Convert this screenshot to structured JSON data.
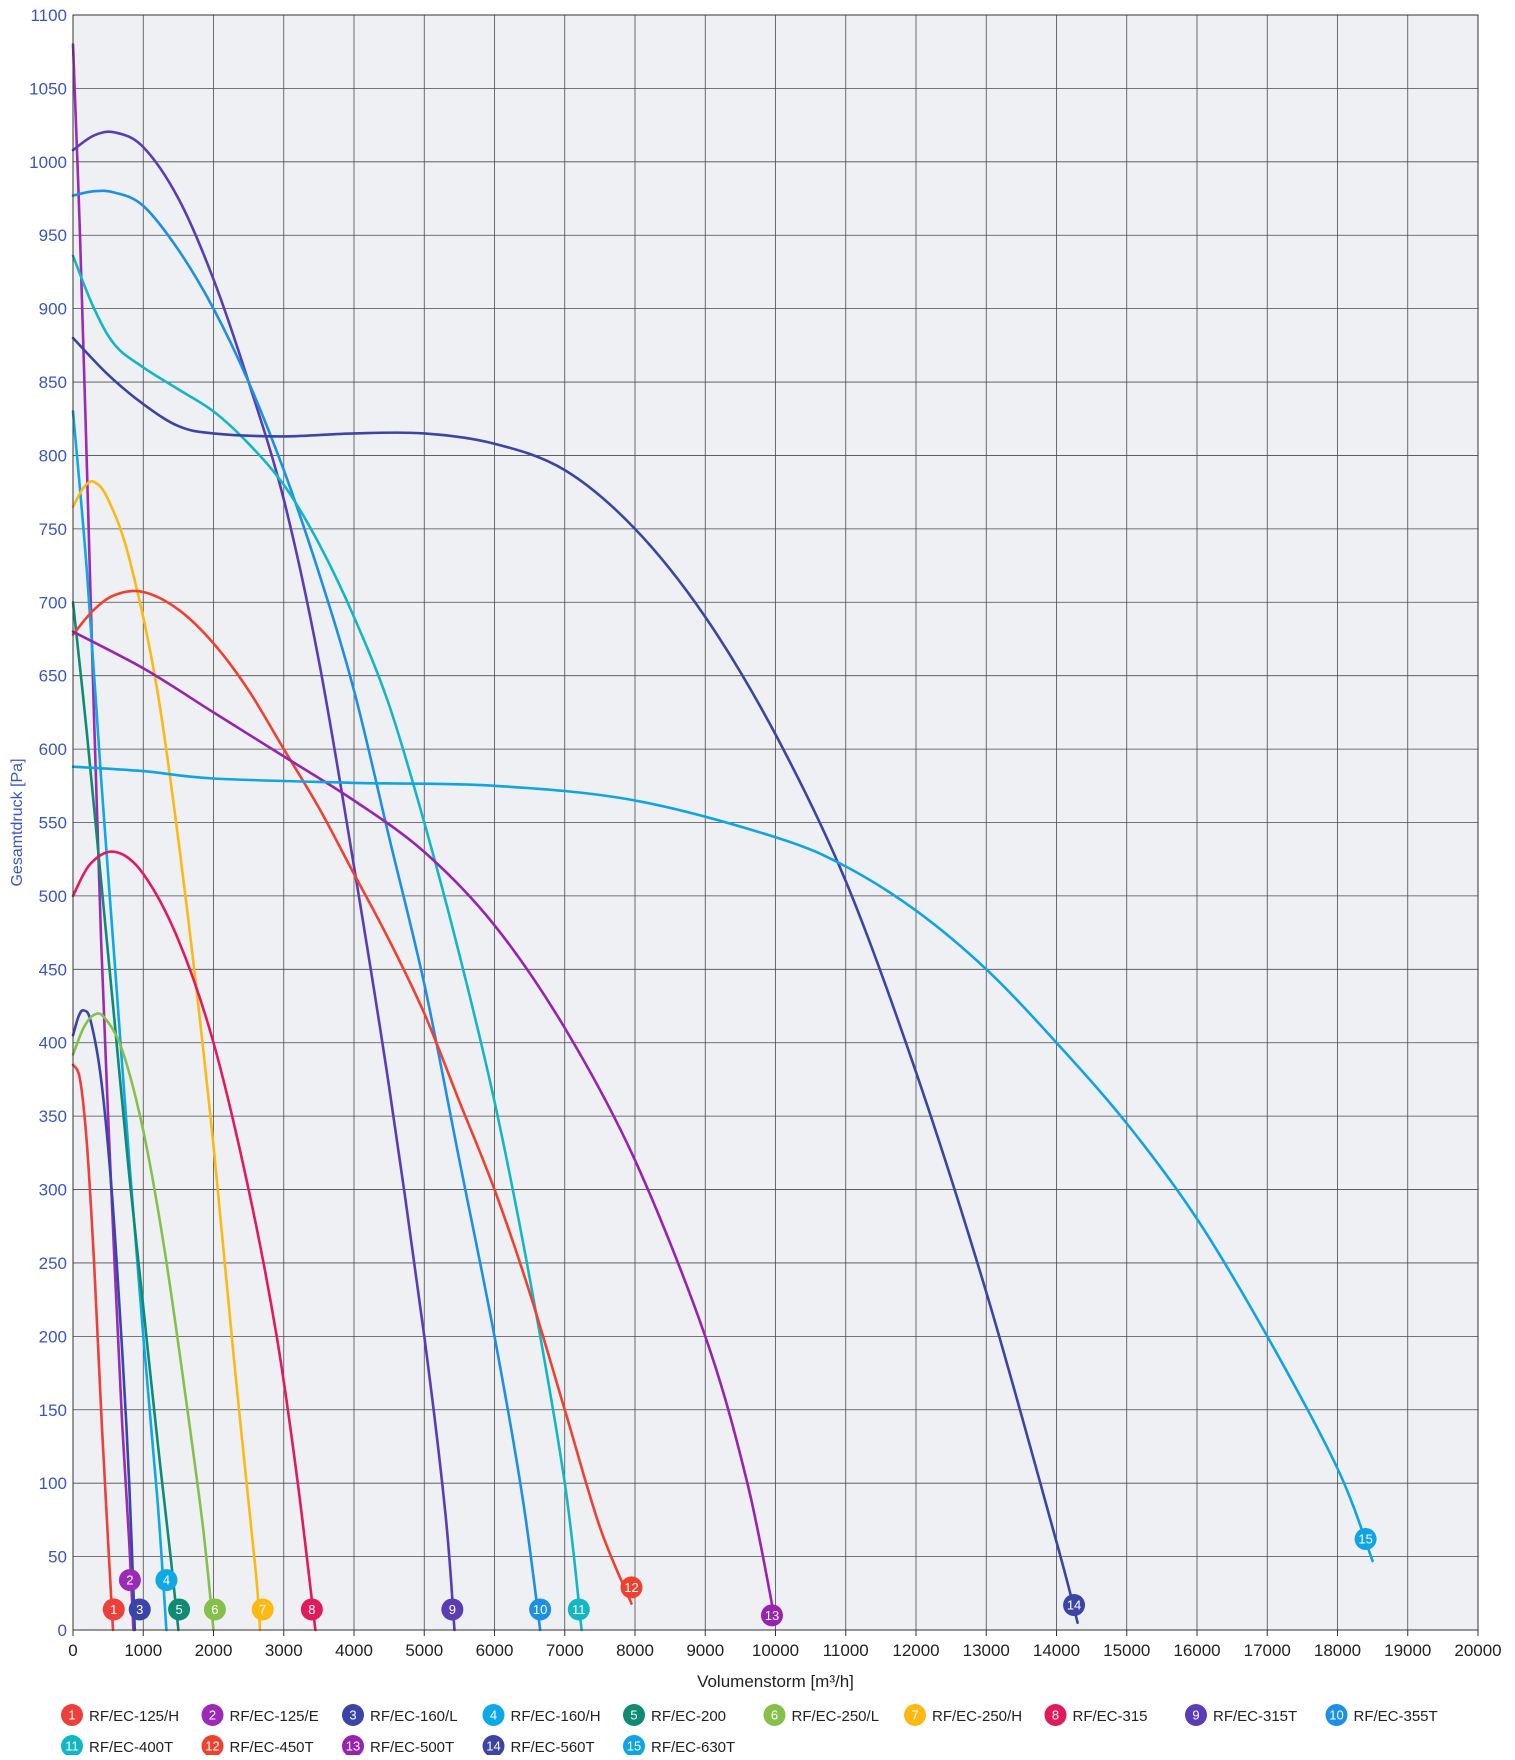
{
  "chart_data": {
    "type": "line",
    "xlabel": "Volumenstorm [m³/h]",
    "ylabel": "Gesamtdruck [Pa]",
    "xlim": [
      0,
      20000
    ],
    "ylim": [
      0,
      1100
    ],
    "grid": true,
    "legend_position": "bottom",
    "plot_background": "#eef0f3",
    "x_ticks": [
      0,
      1000,
      2000,
      3000,
      4000,
      5000,
      6000,
      7000,
      8000,
      9000,
      10000,
      11000,
      12000,
      13000,
      14000,
      15000,
      16000,
      17000,
      18000,
      19000,
      20000
    ],
    "y_ticks": [
      0,
      50,
      100,
      150,
      200,
      250,
      300,
      350,
      400,
      450,
      500,
      550,
      600,
      650,
      700,
      750,
      800,
      850,
      900,
      950,
      1000,
      1050,
      1100
    ],
    "series": [
      {
        "id": "1",
        "name": "RF/EC-125/H",
        "color": "#ef3f3a",
        "points": [
          [
            0,
            385
          ],
          [
            100,
            375
          ],
          [
            200,
            330
          ],
          [
            300,
            250
          ],
          [
            400,
            150
          ],
          [
            500,
            60
          ],
          [
            570,
            0
          ]
        ],
        "marker": [
          580,
          14
        ]
      },
      {
        "id": "2",
        "name": "RF/EC-125/E",
        "color": "#9b2bb6",
        "points": [
          [
            0,
            1080
          ],
          [
            100,
            950
          ],
          [
            200,
            790
          ],
          [
            300,
            620
          ],
          [
            400,
            470
          ],
          [
            500,
            350
          ],
          [
            600,
            240
          ],
          [
            700,
            140
          ],
          [
            800,
            60
          ],
          [
            860,
            0
          ]
        ],
        "marker": [
          810,
          34
        ]
      },
      {
        "id": "3",
        "name": "RF/EC-160/L",
        "color": "#3b44a9",
        "points": [
          [
            0,
            405
          ],
          [
            80,
            418
          ],
          [
            150,
            422
          ],
          [
            250,
            415
          ],
          [
            400,
            375
          ],
          [
            550,
            300
          ],
          [
            700,
            190
          ],
          [
            800,
            100
          ],
          [
            880,
            0
          ]
        ],
        "marker": [
          950,
          14
        ]
      },
      {
        "id": "4",
        "name": "RF/EC-160/H",
        "color": "#0fa8e6",
        "points": [
          [
            0,
            830
          ],
          [
            200,
            720
          ],
          [
            400,
            580
          ],
          [
            600,
            450
          ],
          [
            800,
            320
          ],
          [
            1000,
            200
          ],
          [
            1200,
            90
          ],
          [
            1330,
            0
          ]
        ],
        "marker": [
          1330,
          34
        ]
      },
      {
        "id": "5",
        "name": "RF/EC-200",
        "color": "#0e8b72",
        "points": [
          [
            0,
            700
          ],
          [
            200,
            610
          ],
          [
            400,
            510
          ],
          [
            600,
            410
          ],
          [
            800,
            310
          ],
          [
            1000,
            220
          ],
          [
            1200,
            130
          ],
          [
            1400,
            45
          ],
          [
            1500,
            0
          ]
        ],
        "marker": [
          1510,
          14
        ]
      },
      {
        "id": "6",
        "name": "RF/EC-250/L",
        "color": "#86c04a",
        "points": [
          [
            0,
            392
          ],
          [
            150,
            410
          ],
          [
            300,
            419
          ],
          [
            450,
            417
          ],
          [
            700,
            395
          ],
          [
            1000,
            340
          ],
          [
            1300,
            260
          ],
          [
            1600,
            160
          ],
          [
            1850,
            70
          ],
          [
            2000,
            0
          ]
        ],
        "marker": [
          2020,
          14
        ]
      },
      {
        "id": "7",
        "name": "RF/EC-250/H",
        "color": "#fdb913",
        "points": [
          [
            0,
            765
          ],
          [
            150,
            778
          ],
          [
            300,
            782
          ],
          [
            500,
            770
          ],
          [
            800,
            730
          ],
          [
            1200,
            640
          ],
          [
            1600,
            500
          ],
          [
            2000,
            330
          ],
          [
            2300,
            180
          ],
          [
            2600,
            40
          ],
          [
            2660,
            0
          ]
        ],
        "marker": [
          2700,
          14
        ]
      },
      {
        "id": "8",
        "name": "RF/EC-315",
        "color": "#e2195a",
        "points": [
          [
            0,
            500
          ],
          [
            250,
            522
          ],
          [
            600,
            530
          ],
          [
            1000,
            515
          ],
          [
            1500,
            470
          ],
          [
            2000,
            400
          ],
          [
            2500,
            300
          ],
          [
            2900,
            200
          ],
          [
            3200,
            100
          ],
          [
            3450,
            0
          ]
        ],
        "marker": [
          3400,
          14
        ]
      },
      {
        "id": "9",
        "name": "RF/EC-315T",
        "color": "#5a3cb5",
        "points": [
          [
            0,
            1008
          ],
          [
            300,
            1018
          ],
          [
            600,
            1020
          ],
          [
            1000,
            1010
          ],
          [
            1500,
            975
          ],
          [
            2000,
            920
          ],
          [
            2500,
            850
          ],
          [
            3000,
            770
          ],
          [
            3500,
            660
          ],
          [
            4000,
            520
          ],
          [
            4500,
            370
          ],
          [
            5000,
            200
          ],
          [
            5300,
            80
          ],
          [
            5430,
            0
          ]
        ],
        "marker": [
          5400,
          14
        ]
      },
      {
        "id": "10",
        "name": "RF/EC-355T",
        "color": "#1c8fe6",
        "points": [
          [
            0,
            977
          ],
          [
            300,
            980
          ],
          [
            600,
            979
          ],
          [
            1000,
            970
          ],
          [
            1500,
            940
          ],
          [
            2000,
            900
          ],
          [
            2500,
            850
          ],
          [
            3000,
            790
          ],
          [
            3500,
            720
          ],
          [
            4000,
            640
          ],
          [
            4500,
            540
          ],
          [
            5000,
            440
          ],
          [
            5500,
            320
          ],
          [
            6000,
            200
          ],
          [
            6400,
            90
          ],
          [
            6650,
            0
          ]
        ],
        "marker": [
          6650,
          14
        ]
      },
      {
        "id": "11",
        "name": "RF/EC-400T",
        "color": "#12b7c6",
        "points": [
          [
            0,
            936
          ],
          [
            300,
            900
          ],
          [
            600,
            875
          ],
          [
            1000,
            860
          ],
          [
            1500,
            845
          ],
          [
            2000,
            830
          ],
          [
            2500,
            808
          ],
          [
            3000,
            780
          ],
          [
            3500,
            740
          ],
          [
            4000,
            690
          ],
          [
            4500,
            630
          ],
          [
            5000,
            550
          ],
          [
            5500,
            460
          ],
          [
            6000,
            360
          ],
          [
            6500,
            240
          ],
          [
            7000,
            100
          ],
          [
            7240,
            0
          ]
        ],
        "marker": [
          7200,
          14
        ]
      },
      {
        "id": "12",
        "name": "RF/EC-450T",
        "color": "#ef4130",
        "points": [
          [
            0,
            678
          ],
          [
            300,
            695
          ],
          [
            600,
            705
          ],
          [
            1000,
            707
          ],
          [
            1500,
            695
          ],
          [
            2000,
            672
          ],
          [
            2500,
            640
          ],
          [
            3000,
            600
          ],
          [
            3500,
            560
          ],
          [
            4000,
            515
          ],
          [
            4500,
            470
          ],
          [
            5000,
            420
          ],
          [
            5500,
            360
          ],
          [
            6000,
            300
          ],
          [
            6500,
            230
          ],
          [
            7000,
            150
          ],
          [
            7500,
            70
          ],
          [
            7950,
            18
          ]
        ],
        "marker": [
          7950,
          29
        ]
      },
      {
        "id": "13",
        "name": "RF/EC-500T",
        "color": "#9922b2",
        "points": [
          [
            0,
            680
          ],
          [
            1000,
            655
          ],
          [
            2000,
            625
          ],
          [
            3000,
            595
          ],
          [
            4000,
            565
          ],
          [
            5000,
            530
          ],
          [
            6000,
            480
          ],
          [
            7000,
            410
          ],
          [
            8000,
            320
          ],
          [
            9000,
            200
          ],
          [
            9600,
            100
          ],
          [
            10000,
            5
          ]
        ],
        "marker": [
          9950,
          10
        ]
      },
      {
        "id": "14",
        "name": "RF/EC-560T",
        "color": "#3c44a5",
        "points": [
          [
            0,
            880
          ],
          [
            500,
            855
          ],
          [
            1000,
            835
          ],
          [
            1500,
            820
          ],
          [
            2000,
            815
          ],
          [
            3000,
            813
          ],
          [
            4000,
            815
          ],
          [
            5000,
            815
          ],
          [
            6000,
            808
          ],
          [
            7000,
            790
          ],
          [
            8000,
            750
          ],
          [
            9000,
            690
          ],
          [
            10000,
            610
          ],
          [
            11000,
            510
          ],
          [
            12000,
            380
          ],
          [
            13000,
            230
          ],
          [
            14000,
            60
          ],
          [
            14300,
            5
          ]
        ],
        "marker": [
          14250,
          17
        ]
      },
      {
        "id": "15",
        "name": "RF/EC-630T",
        "color": "#0fa4e6",
        "points": [
          [
            0,
            588
          ],
          [
            1000,
            585
          ],
          [
            2000,
            580
          ],
          [
            4000,
            577
          ],
          [
            6000,
            575
          ],
          [
            8000,
            565
          ],
          [
            10000,
            540
          ],
          [
            11000,
            520
          ],
          [
            12000,
            490
          ],
          [
            13000,
            450
          ],
          [
            14000,
            400
          ],
          [
            15000,
            345
          ],
          [
            16000,
            280
          ],
          [
            17000,
            200
          ],
          [
            18000,
            110
          ],
          [
            18500,
            47
          ]
        ],
        "marker": [
          18400,
          62
        ]
      }
    ]
  },
  "legend": [
    {
      "id": "1",
      "label": "RF/EC-125/H",
      "color": "#ef3f3a"
    },
    {
      "id": "2",
      "label": "RF/EC-125/E",
      "color": "#9b2bb6"
    },
    {
      "id": "3",
      "label": "RF/EC-160/L",
      "color": "#3b44a9"
    },
    {
      "id": "4",
      "label": "RF/EC-160/H",
      "color": "#0fa8e6"
    },
    {
      "id": "5",
      "label": "RF/EC-200",
      "color": "#0e8b72"
    },
    {
      "id": "6",
      "label": "RF/EC-250/L",
      "color": "#86c04a"
    },
    {
      "id": "7",
      "label": "RF/EC-250/H",
      "color": "#fdb913"
    },
    {
      "id": "8",
      "label": "RF/EC-315",
      "color": "#e2195a"
    },
    {
      "id": "9",
      "label": "RF/EC-315T",
      "color": "#5a3cb5"
    },
    {
      "id": "10",
      "label": "RF/EC-355T",
      "color": "#1c8fe6"
    },
    {
      "id": "11",
      "label": "RF/EC-400T",
      "color": "#12b7c6"
    },
    {
      "id": "12",
      "label": "RF/EC-450T",
      "color": "#ef4130"
    },
    {
      "id": "13",
      "label": "RF/EC-500T",
      "color": "#9922b2"
    },
    {
      "id": "14",
      "label": "RF/EC-560T",
      "color": "#3c44a5"
    },
    {
      "id": "15",
      "label": "RF/EC-630T",
      "color": "#0fa4e6"
    }
  ]
}
